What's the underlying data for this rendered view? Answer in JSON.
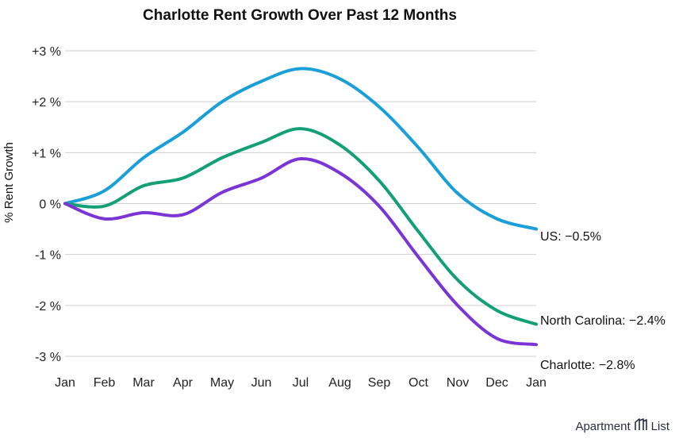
{
  "chart_data": {
    "type": "line",
    "title": "Charlotte Rent Growth Over Past 12 Months",
    "xlabel": "",
    "ylabel": "% Rent Growth",
    "categories": [
      "Jan",
      "Feb",
      "Mar",
      "Apr",
      "May",
      "Jun",
      "Jul",
      "Aug",
      "Sep",
      "Oct",
      "Nov",
      "Dec",
      "Jan"
    ],
    "ylim": [
      -3,
      3
    ],
    "yticks": [
      {
        "value": 3,
        "label": "+3 %"
      },
      {
        "value": 2,
        "label": "+2 %"
      },
      {
        "value": 1,
        "label": "+1 %"
      },
      {
        "value": 0,
        "label": "0 %"
      },
      {
        "value": -1,
        "label": "-1 %"
      },
      {
        "value": -2,
        "label": "-2 %"
      },
      {
        "value": -3,
        "label": "-3 %"
      }
    ],
    "grid": true,
    "series": [
      {
        "name": "US",
        "end_label": "US: −0.5%",
        "color": "#1a9fd8",
        "values": [
          0,
          0.25,
          0.9,
          1.4,
          2.0,
          2.4,
          2.65,
          2.45,
          1.9,
          1.1,
          0.2,
          -0.3,
          -0.5
        ]
      },
      {
        "name": "North Carolina",
        "end_label": "North Carolina: −2.4%",
        "color": "#14a077",
        "values": [
          0,
          -0.05,
          0.35,
          0.5,
          0.9,
          1.2,
          1.47,
          1.15,
          0.45,
          -0.55,
          -1.5,
          -2.1,
          -2.37
        ]
      },
      {
        "name": "Charlotte",
        "end_label": "Charlotte: −2.8%",
        "color": "#7b35d6",
        "values": [
          0,
          -0.3,
          -0.18,
          -0.22,
          0.22,
          0.5,
          0.88,
          0.6,
          -0.05,
          -1.05,
          -2.0,
          -2.65,
          -2.77
        ]
      }
    ]
  },
  "brand": {
    "word1": "Apartment",
    "word2": "List"
  }
}
